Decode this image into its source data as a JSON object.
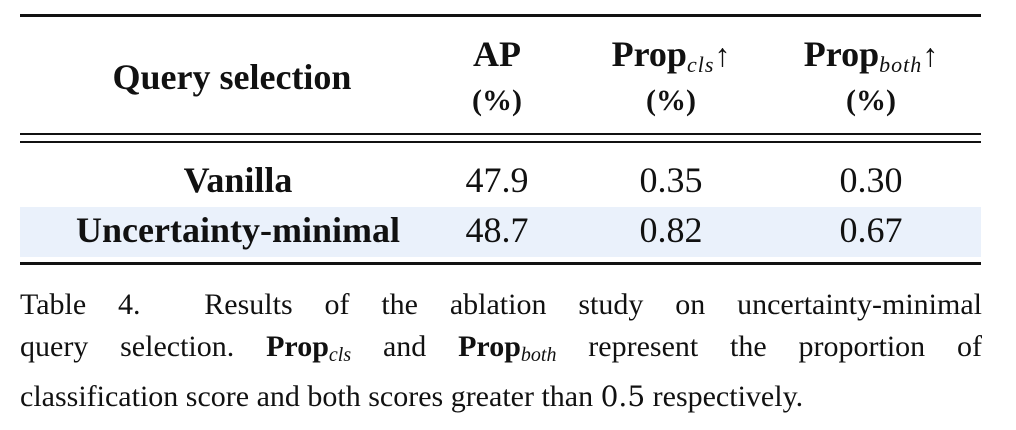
{
  "table": {
    "headers": {
      "query_selection": "Query selection",
      "ap": {
        "label": "AP",
        "unit": "(%)"
      },
      "prop_cls": {
        "label": "Prop",
        "sub": "cls",
        "arrow": "↑",
        "unit": "(%)"
      },
      "prop_both": {
        "label": "Prop",
        "sub": "both",
        "arrow": "↑",
        "unit": "(%)"
      }
    },
    "rows": [
      {
        "label": "Vanilla",
        "ap": "47.9",
        "prop_cls": "0.35",
        "prop_both": "0.30"
      },
      {
        "label": "Uncertainty-minimal",
        "ap": "48.7",
        "prop_cls": "0.82",
        "prop_both": "0.67"
      }
    ],
    "highlight_color": "#eaf1fb"
  },
  "caption": {
    "line1_prefix": "Table 4.",
    "line1_text": "Results of the ablation study on uncertainty-minimal",
    "line2_a": "query selection.",
    "line2_prop1": "Prop",
    "line2_sub1": "cls",
    "line2_and": "and",
    "line2_prop2": "Prop",
    "line2_sub2": "both",
    "line2_b": "represent the proportion of",
    "line3_a": "classification score and both scores greater than",
    "line3_num": "0.5",
    "line3_b": "respectively."
  }
}
